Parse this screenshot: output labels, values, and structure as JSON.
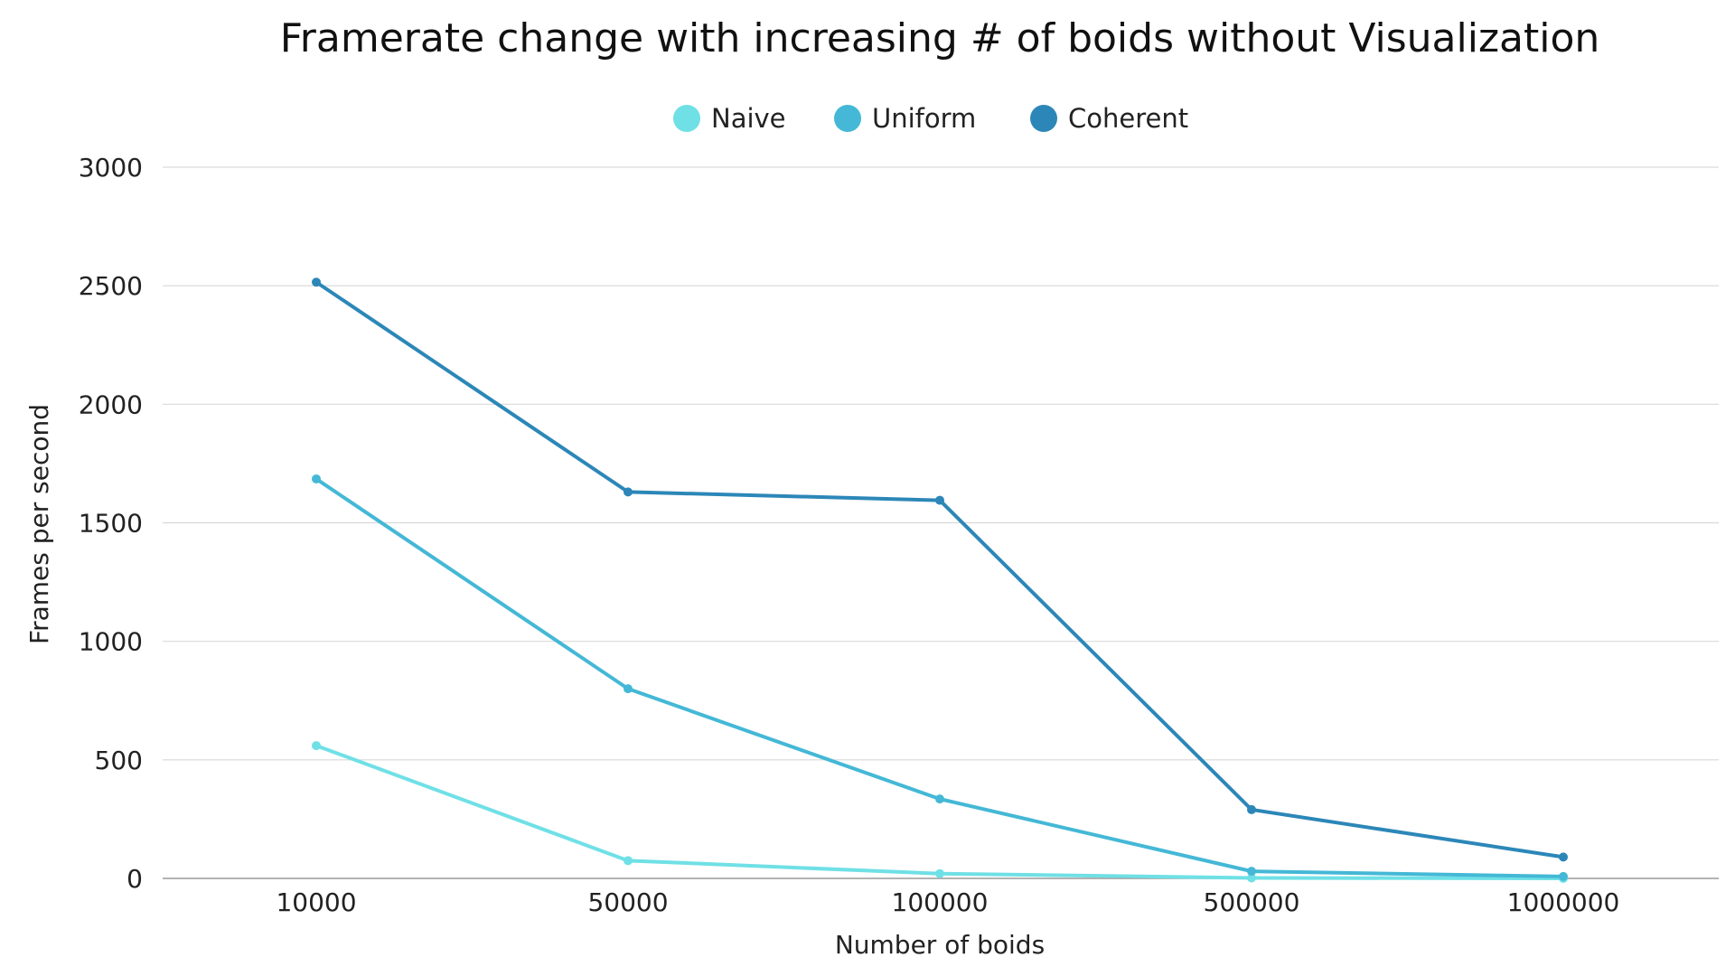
{
  "chart_data": {
    "type": "line",
    "title": "Framerate change with increasing # of boids without Visualization",
    "xlabel": "Number of boids",
    "ylabel": "Frames per second",
    "categories": [
      "10000",
      "50000",
      "100000",
      "500000",
      "1000000"
    ],
    "ylim": [
      0,
      3000
    ],
    "yticks": [
      0,
      500,
      1000,
      1500,
      2000,
      2500,
      3000
    ],
    "grid": true,
    "legend_position": "top-center",
    "series": [
      {
        "name": "Naive",
        "color": "#6fe0e6",
        "values": [
          560,
          75,
          20,
          2,
          0
        ]
      },
      {
        "name": "Uniform",
        "color": "#44b8d6",
        "values": [
          1685,
          800,
          335,
          30,
          8
        ]
      },
      {
        "name": "Coherent",
        "color": "#2c87b8",
        "values": [
          2515,
          1630,
          1595,
          290,
          90
        ]
      }
    ]
  }
}
